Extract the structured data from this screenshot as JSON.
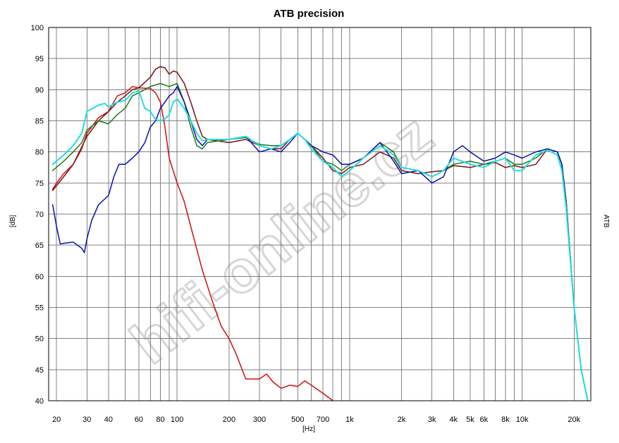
{
  "chart_data": {
    "type": "line",
    "title": "ATB precision",
    "xlabel": "[Hz]",
    "ylabel": "[dB]",
    "right_label": "ATB",
    "watermark": "hifi-online.cz",
    "x_scale": "log",
    "xlim": [
      18,
      25000
    ],
    "ylim": [
      40,
      100
    ],
    "y_ticks": [
      40,
      45,
      50,
      55,
      60,
      65,
      70,
      75,
      80,
      85,
      90,
      95,
      100
    ],
    "x_ticks": [
      {
        "value": 20,
        "label": "20"
      },
      {
        "value": 30,
        "label": "30"
      },
      {
        "value": 40,
        "label": "40"
      },
      {
        "value": 60,
        "label": "60"
      },
      {
        "value": 80,
        "label": "80"
      },
      {
        "value": 100,
        "label": "100"
      },
      {
        "value": 200,
        "label": "200"
      },
      {
        "value": 300,
        "label": "300"
      },
      {
        "value": 500,
        "label": "500"
      },
      {
        "value": 700,
        "label": "700"
      },
      {
        "value": 1000,
        "label": "1k"
      },
      {
        "value": 2000,
        "label": "2k"
      },
      {
        "value": 3000,
        "label": "3k"
      },
      {
        "value": 4000,
        "label": "4k"
      },
      {
        "value": 5000,
        "label": "5k"
      },
      {
        "value": 6000,
        "label": "6k"
      },
      {
        "value": 8000,
        "label": "8k"
      },
      {
        "value": 10000,
        "label": "10k"
      },
      {
        "value": 20000,
        "label": "20k"
      }
    ],
    "grid_lines": [
      20,
      30,
      40,
      50,
      60,
      70,
      80,
      90,
      100,
      200,
      300,
      400,
      500,
      600,
      700,
      800,
      900,
      1000,
      2000,
      3000,
      4000,
      5000,
      6000,
      7000,
      8000,
      9000,
      10000,
      20000
    ],
    "grid": true,
    "series": [
      {
        "color": "#cc1010",
        "points": [
          [
            19,
            74
          ],
          [
            20,
            75
          ],
          [
            22,
            76.5
          ],
          [
            25,
            78
          ],
          [
            28,
            80.5
          ],
          [
            30,
            83
          ],
          [
            35,
            85.5
          ],
          [
            40,
            86.5
          ],
          [
            45,
            89
          ],
          [
            50,
            89.5
          ],
          [
            55,
            90.5
          ],
          [
            60,
            90.3
          ],
          [
            70,
            90.2
          ],
          [
            75,
            89.5
          ],
          [
            80,
            88
          ],
          [
            85,
            84
          ],
          [
            90,
            79
          ],
          [
            100,
            75
          ],
          [
            110,
            72
          ],
          [
            120,
            68
          ],
          [
            140,
            61
          ],
          [
            160,
            56
          ],
          [
            180,
            52
          ],
          [
            200,
            50
          ],
          [
            220,
            47.5
          ],
          [
            250,
            43.5
          ],
          [
            300,
            43.5
          ],
          [
            330,
            44.3
          ],
          [
            360,
            43
          ],
          [
            400,
            42
          ],
          [
            450,
            42.5
          ],
          [
            500,
            42.3
          ],
          [
            550,
            43.2
          ],
          [
            600,
            42.5
          ],
          [
            700,
            41.2
          ],
          [
            800,
            40
          ]
        ]
      },
      {
        "color": "#7a1010",
        "points": [
          [
            19,
            73.8
          ],
          [
            22,
            76
          ],
          [
            25,
            78
          ],
          [
            30,
            82.5
          ],
          [
            35,
            85
          ],
          [
            40,
            86.5
          ],
          [
            45,
            88
          ],
          [
            50,
            89
          ],
          [
            55,
            90
          ],
          [
            60,
            90.3
          ],
          [
            70,
            92
          ],
          [
            75,
            93.3
          ],
          [
            80,
            93.7
          ],
          [
            85,
            93.5
          ],
          [
            90,
            92.5
          ],
          [
            95,
            93
          ],
          [
            100,
            92.8
          ],
          [
            110,
            91
          ],
          [
            120,
            88
          ],
          [
            130,
            85
          ],
          [
            140,
            82.5
          ],
          [
            150,
            82
          ],
          [
            200,
            81.5
          ],
          [
            250,
            82
          ],
          [
            300,
            81
          ],
          [
            350,
            80.5
          ],
          [
            400,
            80.5
          ],
          [
            450,
            82
          ],
          [
            500,
            83
          ],
          [
            550,
            82
          ],
          [
            600,
            81
          ],
          [
            700,
            79
          ],
          [
            800,
            77
          ],
          [
            900,
            76.5
          ],
          [
            1000,
            77.5
          ],
          [
            1200,
            78
          ],
          [
            1500,
            80
          ],
          [
            1800,
            79
          ],
          [
            2000,
            77
          ],
          [
            2500,
            76.5
          ],
          [
            3000,
            76.8
          ],
          [
            3500,
            77
          ],
          [
            4000,
            77.8
          ],
          [
            5000,
            77.5
          ],
          [
            6000,
            78
          ],
          [
            7000,
            78.3
          ],
          [
            8000,
            77.5
          ],
          [
            9000,
            77.8
          ],
          [
            10000,
            77.5
          ],
          [
            12000,
            78
          ],
          [
            14000,
            80.5
          ],
          [
            16000,
            80
          ],
          [
            17000,
            78
          ],
          [
            18000,
            72
          ],
          [
            20000,
            55
          ],
          [
            22000,
            45
          ],
          [
            24000,
            40
          ]
        ]
      },
      {
        "color": "#1a7a1a",
        "points": [
          [
            19,
            77
          ],
          [
            22,
            78.5
          ],
          [
            25,
            80
          ],
          [
            28,
            81.5
          ],
          [
            30,
            83.5
          ],
          [
            35,
            85
          ],
          [
            40,
            84.5
          ],
          [
            45,
            86
          ],
          [
            50,
            87
          ],
          [
            55,
            89
          ],
          [
            60,
            89.5
          ],
          [
            70,
            90.5
          ],
          [
            80,
            91
          ],
          [
            90,
            90.5
          ],
          [
            100,
            91
          ],
          [
            110,
            88
          ],
          [
            120,
            84
          ],
          [
            130,
            81
          ],
          [
            140,
            80.5
          ],
          [
            150,
            81.5
          ],
          [
            200,
            82
          ],
          [
            250,
            82.3
          ],
          [
            300,
            81.2
          ],
          [
            350,
            81
          ],
          [
            400,
            81
          ],
          [
            450,
            82
          ],
          [
            500,
            83
          ],
          [
            550,
            82
          ],
          [
            600,
            81
          ],
          [
            700,
            78.5
          ],
          [
            800,
            78
          ],
          [
            900,
            77
          ],
          [
            1000,
            78
          ],
          [
            1200,
            79
          ],
          [
            1500,
            81.5
          ],
          [
            1800,
            80
          ],
          [
            2000,
            77.5
          ],
          [
            2500,
            77
          ],
          [
            3000,
            76
          ],
          [
            3500,
            77
          ],
          [
            4000,
            78
          ],
          [
            5000,
            78.5
          ],
          [
            6000,
            78
          ],
          [
            7000,
            78.5
          ],
          [
            8000,
            79
          ],
          [
            9000,
            78
          ],
          [
            10000,
            78
          ],
          [
            12000,
            79
          ],
          [
            14000,
            80.5
          ],
          [
            16000,
            80
          ],
          [
            17000,
            78
          ],
          [
            18000,
            72
          ],
          [
            20000,
            55
          ],
          [
            22000,
            45
          ],
          [
            24000,
            40
          ]
        ]
      },
      {
        "color": "#0a10aa",
        "points": [
          [
            19,
            71.5
          ],
          [
            20,
            68
          ],
          [
            21,
            65.2
          ],
          [
            22,
            65.3
          ],
          [
            25,
            65.5
          ],
          [
            28,
            64.5
          ],
          [
            29,
            63.8
          ],
          [
            30,
            66
          ],
          [
            32,
            69
          ],
          [
            35,
            71.5
          ],
          [
            40,
            73
          ],
          [
            43,
            76
          ],
          [
            46,
            78
          ],
          [
            50,
            78
          ],
          [
            55,
            79
          ],
          [
            60,
            80
          ],
          [
            65,
            81.5
          ],
          [
            70,
            84
          ],
          [
            75,
            85
          ],
          [
            80,
            87
          ],
          [
            85,
            88
          ],
          [
            90,
            89
          ],
          [
            95,
            89.5
          ],
          [
            100,
            90.5
          ],
          [
            110,
            88
          ],
          [
            120,
            85
          ],
          [
            130,
            82
          ],
          [
            140,
            81
          ],
          [
            150,
            82
          ],
          [
            200,
            82
          ],
          [
            250,
            82.5
          ],
          [
            300,
            80
          ],
          [
            350,
            80.5
          ],
          [
            400,
            80
          ],
          [
            450,
            81.5
          ],
          [
            500,
            83
          ],
          [
            550,
            82
          ],
          [
            600,
            81
          ],
          [
            700,
            80
          ],
          [
            800,
            79.5
          ],
          [
            900,
            78
          ],
          [
            1000,
            78
          ],
          [
            1200,
            79
          ],
          [
            1500,
            81.5
          ],
          [
            1800,
            78.5
          ],
          [
            2000,
            76.5
          ],
          [
            2500,
            77
          ],
          [
            3000,
            75
          ],
          [
            3500,
            76
          ],
          [
            4000,
            80
          ],
          [
            4500,
            81
          ],
          [
            5000,
            80
          ],
          [
            6000,
            78.5
          ],
          [
            7000,
            79
          ],
          [
            8000,
            80
          ],
          [
            9000,
            79.5
          ],
          [
            10000,
            79
          ],
          [
            12000,
            80
          ],
          [
            14000,
            80.5
          ],
          [
            16000,
            80
          ],
          [
            17000,
            78
          ],
          [
            18000,
            72
          ],
          [
            20000,
            55
          ],
          [
            22000,
            45
          ],
          [
            24000,
            40
          ]
        ]
      },
      {
        "color": "#22dddd",
        "points": [
          [
            19,
            78
          ],
          [
            22,
            79.5
          ],
          [
            25,
            81
          ],
          [
            28,
            83
          ],
          [
            30,
            86.5
          ],
          [
            35,
            87.5
          ],
          [
            38,
            87.8
          ],
          [
            40,
            87.2
          ],
          [
            45,
            88
          ],
          [
            50,
            88.3
          ],
          [
            55,
            89.5
          ],
          [
            60,
            89.8
          ],
          [
            65,
            87
          ],
          [
            70,
            86.5
          ],
          [
            75,
            85.2
          ],
          [
            80,
            85
          ],
          [
            85,
            85.3
          ],
          [
            90,
            86
          ],
          [
            95,
            88
          ],
          [
            100,
            88.5
          ],
          [
            110,
            87
          ],
          [
            120,
            85
          ],
          [
            130,
            83
          ],
          [
            140,
            81.8
          ],
          [
            150,
            82
          ],
          [
            200,
            82
          ],
          [
            250,
            82.5
          ],
          [
            300,
            81
          ],
          [
            350,
            80.5
          ],
          [
            400,
            81
          ],
          [
            450,
            82
          ],
          [
            500,
            83
          ],
          [
            550,
            82
          ],
          [
            600,
            80.5
          ],
          [
            700,
            78.5
          ],
          [
            800,
            77.5
          ],
          [
            900,
            76
          ],
          [
            1000,
            77
          ],
          [
            1200,
            79
          ],
          [
            1500,
            81
          ],
          [
            1800,
            79.5
          ],
          [
            2000,
            77.5
          ],
          [
            2500,
            77
          ],
          [
            3000,
            76
          ],
          [
            3500,
            77
          ],
          [
            4000,
            79
          ],
          [
            5000,
            78
          ],
          [
            6000,
            77.5
          ],
          [
            7000,
            78.5
          ],
          [
            8000,
            79
          ],
          [
            9000,
            77
          ],
          [
            10000,
            77
          ],
          [
            12000,
            79.5
          ],
          [
            14000,
            80.3
          ],
          [
            16000,
            79.5
          ],
          [
            17000,
            77
          ],
          [
            18000,
            71
          ],
          [
            20000,
            55
          ],
          [
            22000,
            45
          ],
          [
            24000,
            40
          ]
        ]
      }
    ]
  }
}
